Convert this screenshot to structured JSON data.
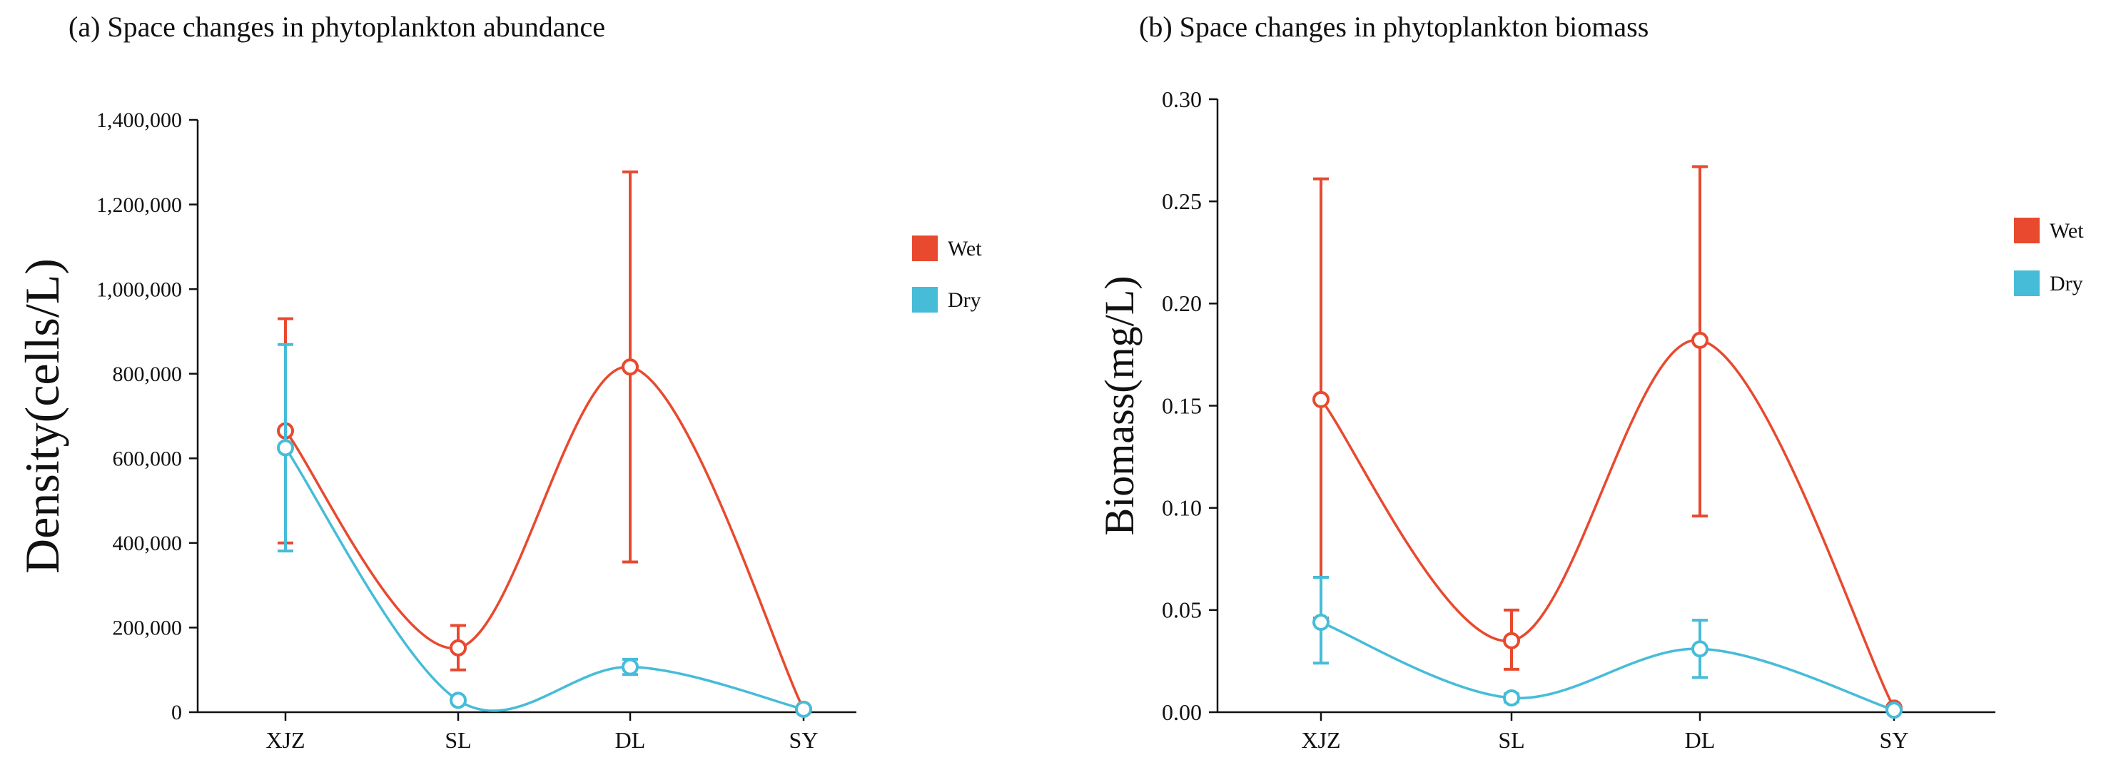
{
  "colors": {
    "wet": "#e8492f",
    "dry": "#46bcd8",
    "axis": "#111111"
  },
  "chart_data": [
    {
      "type": "line",
      "title": "(a) Space changes in phytoplankton abundance",
      "xlabel": "",
      "ylabel": "Density(cells/L)",
      "categories": [
        "XJZ",
        "SL",
        "DL",
        "SY"
      ],
      "ylim": [
        0,
        1400000
      ],
      "yticks": [
        0,
        200000,
        400000,
        600000,
        800000,
        1000000,
        1200000,
        1400000
      ],
      "ytick_labels": [
        "0",
        "200,000",
        "400,000",
        "600,000",
        "800,000",
        "1,000,000",
        "1,200,000",
        "1,400,000"
      ],
      "legend_position": "right",
      "series": [
        {
          "name": "Wet",
          "color": "#e8492f",
          "values": [
            665000,
            152000,
            816000,
            7000
          ],
          "err_low": [
            400000,
            100000,
            355000,
            3000
          ],
          "err_high": [
            930000,
            205000,
            1277000,
            11000
          ]
        },
        {
          "name": "Dry",
          "color": "#46bcd8",
          "values": [
            625000,
            28000,
            107000,
            7000
          ],
          "err_low": [
            381000,
            22000,
            89000,
            3000
          ],
          "err_high": [
            869000,
            34000,
            125000,
            11000
          ]
        }
      ]
    },
    {
      "type": "line",
      "title": "(b) Space changes in phytoplankton biomass",
      "xlabel": "",
      "ylabel": "Biomass(mg/L)",
      "categories": [
        "XJZ",
        "SL",
        "DL",
        "SY"
      ],
      "ylim": [
        0,
        0.3
      ],
      "yticks": [
        0,
        0.05,
        0.1,
        0.15,
        0.2,
        0.25,
        0.3
      ],
      "ytick_labels": [
        "0.00",
        "0.05",
        "0.10",
        "0.15",
        "0.20",
        "0.25",
        "0.30"
      ],
      "legend_position": "right",
      "series": [
        {
          "name": "Wet",
          "color": "#e8492f",
          "values": [
            0.153,
            0.035,
            0.182,
            0.002
          ],
          "err_low": [
            0.046,
            0.021,
            0.096,
            0.001
          ],
          "err_high": [
            0.261,
            0.05,
            0.267,
            0.003
          ]
        },
        {
          "name": "Dry",
          "color": "#46bcd8",
          "values": [
            0.044,
            0.007,
            0.031,
            0.001
          ],
          "err_low": [
            0.024,
            0.005,
            0.017,
            0.0
          ],
          "err_high": [
            0.066,
            0.009,
            0.045,
            0.002
          ]
        }
      ]
    }
  ]
}
